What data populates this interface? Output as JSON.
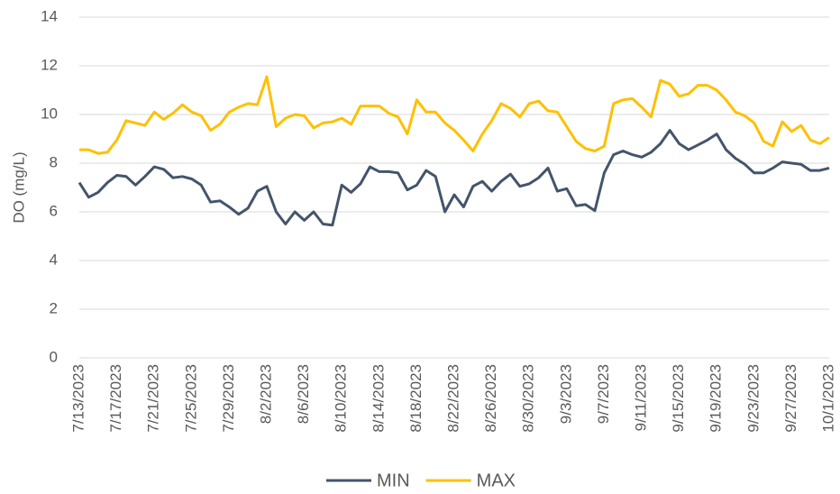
{
  "chart_data": {
    "type": "line",
    "y_label": "DO (mg/L)",
    "categories": [
      "7/13/2023",
      null,
      null,
      null,
      "7/17/2023",
      null,
      null,
      null,
      "7/21/2023",
      null,
      null,
      null,
      "7/25/2023",
      null,
      null,
      null,
      "7/29/2023",
      null,
      null,
      null,
      "8/2/2023",
      null,
      null,
      null,
      "8/6/2023",
      null,
      null,
      null,
      "8/10/2023",
      null,
      null,
      null,
      "8/14/2023",
      null,
      null,
      null,
      "8/18/2023",
      null,
      null,
      null,
      "8/22/2023",
      null,
      null,
      null,
      "8/26/2023",
      null,
      null,
      null,
      "8/30/2023",
      null,
      null,
      null,
      "9/3/2023",
      null,
      null,
      null,
      "9/7/2023",
      null,
      null,
      null,
      "9/11/2023",
      null,
      null,
      null,
      "9/15/2023",
      null,
      null,
      null,
      "9/19/2023",
      null,
      null,
      null,
      "9/23/2023",
      null,
      null,
      null,
      "9/27/2023",
      null,
      null,
      null,
      "10/1/2023"
    ],
    "series": [
      {
        "name": "MIN",
        "color": "#44546a",
        "values": [
          7.2,
          6.6,
          6.8,
          7.2,
          7.5,
          7.45,
          7.1,
          7.45,
          7.85,
          7.75,
          7.4,
          7.45,
          7.35,
          7.1,
          6.4,
          6.45,
          6.2,
          5.9,
          6.15,
          6.85,
          7.05,
          6.0,
          5.5,
          6.0,
          5.65,
          6.0,
          5.5,
          5.45,
          7.1,
          6.8,
          7.15,
          7.85,
          7.65,
          7.65,
          7.6,
          6.9,
          7.1,
          7.7,
          7.45,
          6.0,
          6.7,
          6.2,
          7.05,
          7.25,
          6.85,
          7.25,
          7.55,
          7.05,
          7.15,
          7.4,
          7.8,
          6.85,
          6.95,
          6.25,
          6.3,
          6.05,
          7.6,
          8.35,
          8.5,
          8.35,
          8.25,
          8.45,
          8.8,
          9.35,
          8.8,
          8.55,
          8.75,
          8.95,
          9.2,
          8.55,
          8.2,
          7.95,
          7.6,
          7.6,
          7.8,
          8.05,
          8.0,
          7.95,
          7.7,
          7.7,
          7.8
        ]
      },
      {
        "name": "MAX",
        "color": "#ffc000",
        "values": [
          8.55,
          8.55,
          8.4,
          8.45,
          8.95,
          9.75,
          9.65,
          9.55,
          10.1,
          9.8,
          10.05,
          10.4,
          10.1,
          9.95,
          9.35,
          9.6,
          10.1,
          10.3,
          10.45,
          10.4,
          11.55,
          9.5,
          9.85,
          10.0,
          9.95,
          9.45,
          9.65,
          9.7,
          9.85,
          9.6,
          10.35,
          10.35,
          10.35,
          10.05,
          9.9,
          9.2,
          10.6,
          10.1,
          10.1,
          9.65,
          9.35,
          8.95,
          8.5,
          9.2,
          9.75,
          10.45,
          10.25,
          9.9,
          10.45,
          10.55,
          10.15,
          10.1,
          9.5,
          8.9,
          8.6,
          8.5,
          8.7,
          10.45,
          10.6,
          10.65,
          10.3,
          9.9,
          11.4,
          11.25,
          10.75,
          10.85,
          11.2,
          11.2,
          11.0,
          10.6,
          10.1,
          9.95,
          9.65,
          8.9,
          8.7,
          9.7,
          9.3,
          9.55,
          8.95,
          8.8,
          9.05
        ]
      }
    ],
    "ylim": [
      0,
      14
    ],
    "yticks": [
      0,
      2,
      4,
      6,
      8,
      10,
      12,
      14
    ],
    "grid": true,
    "legend": "bottom"
  }
}
